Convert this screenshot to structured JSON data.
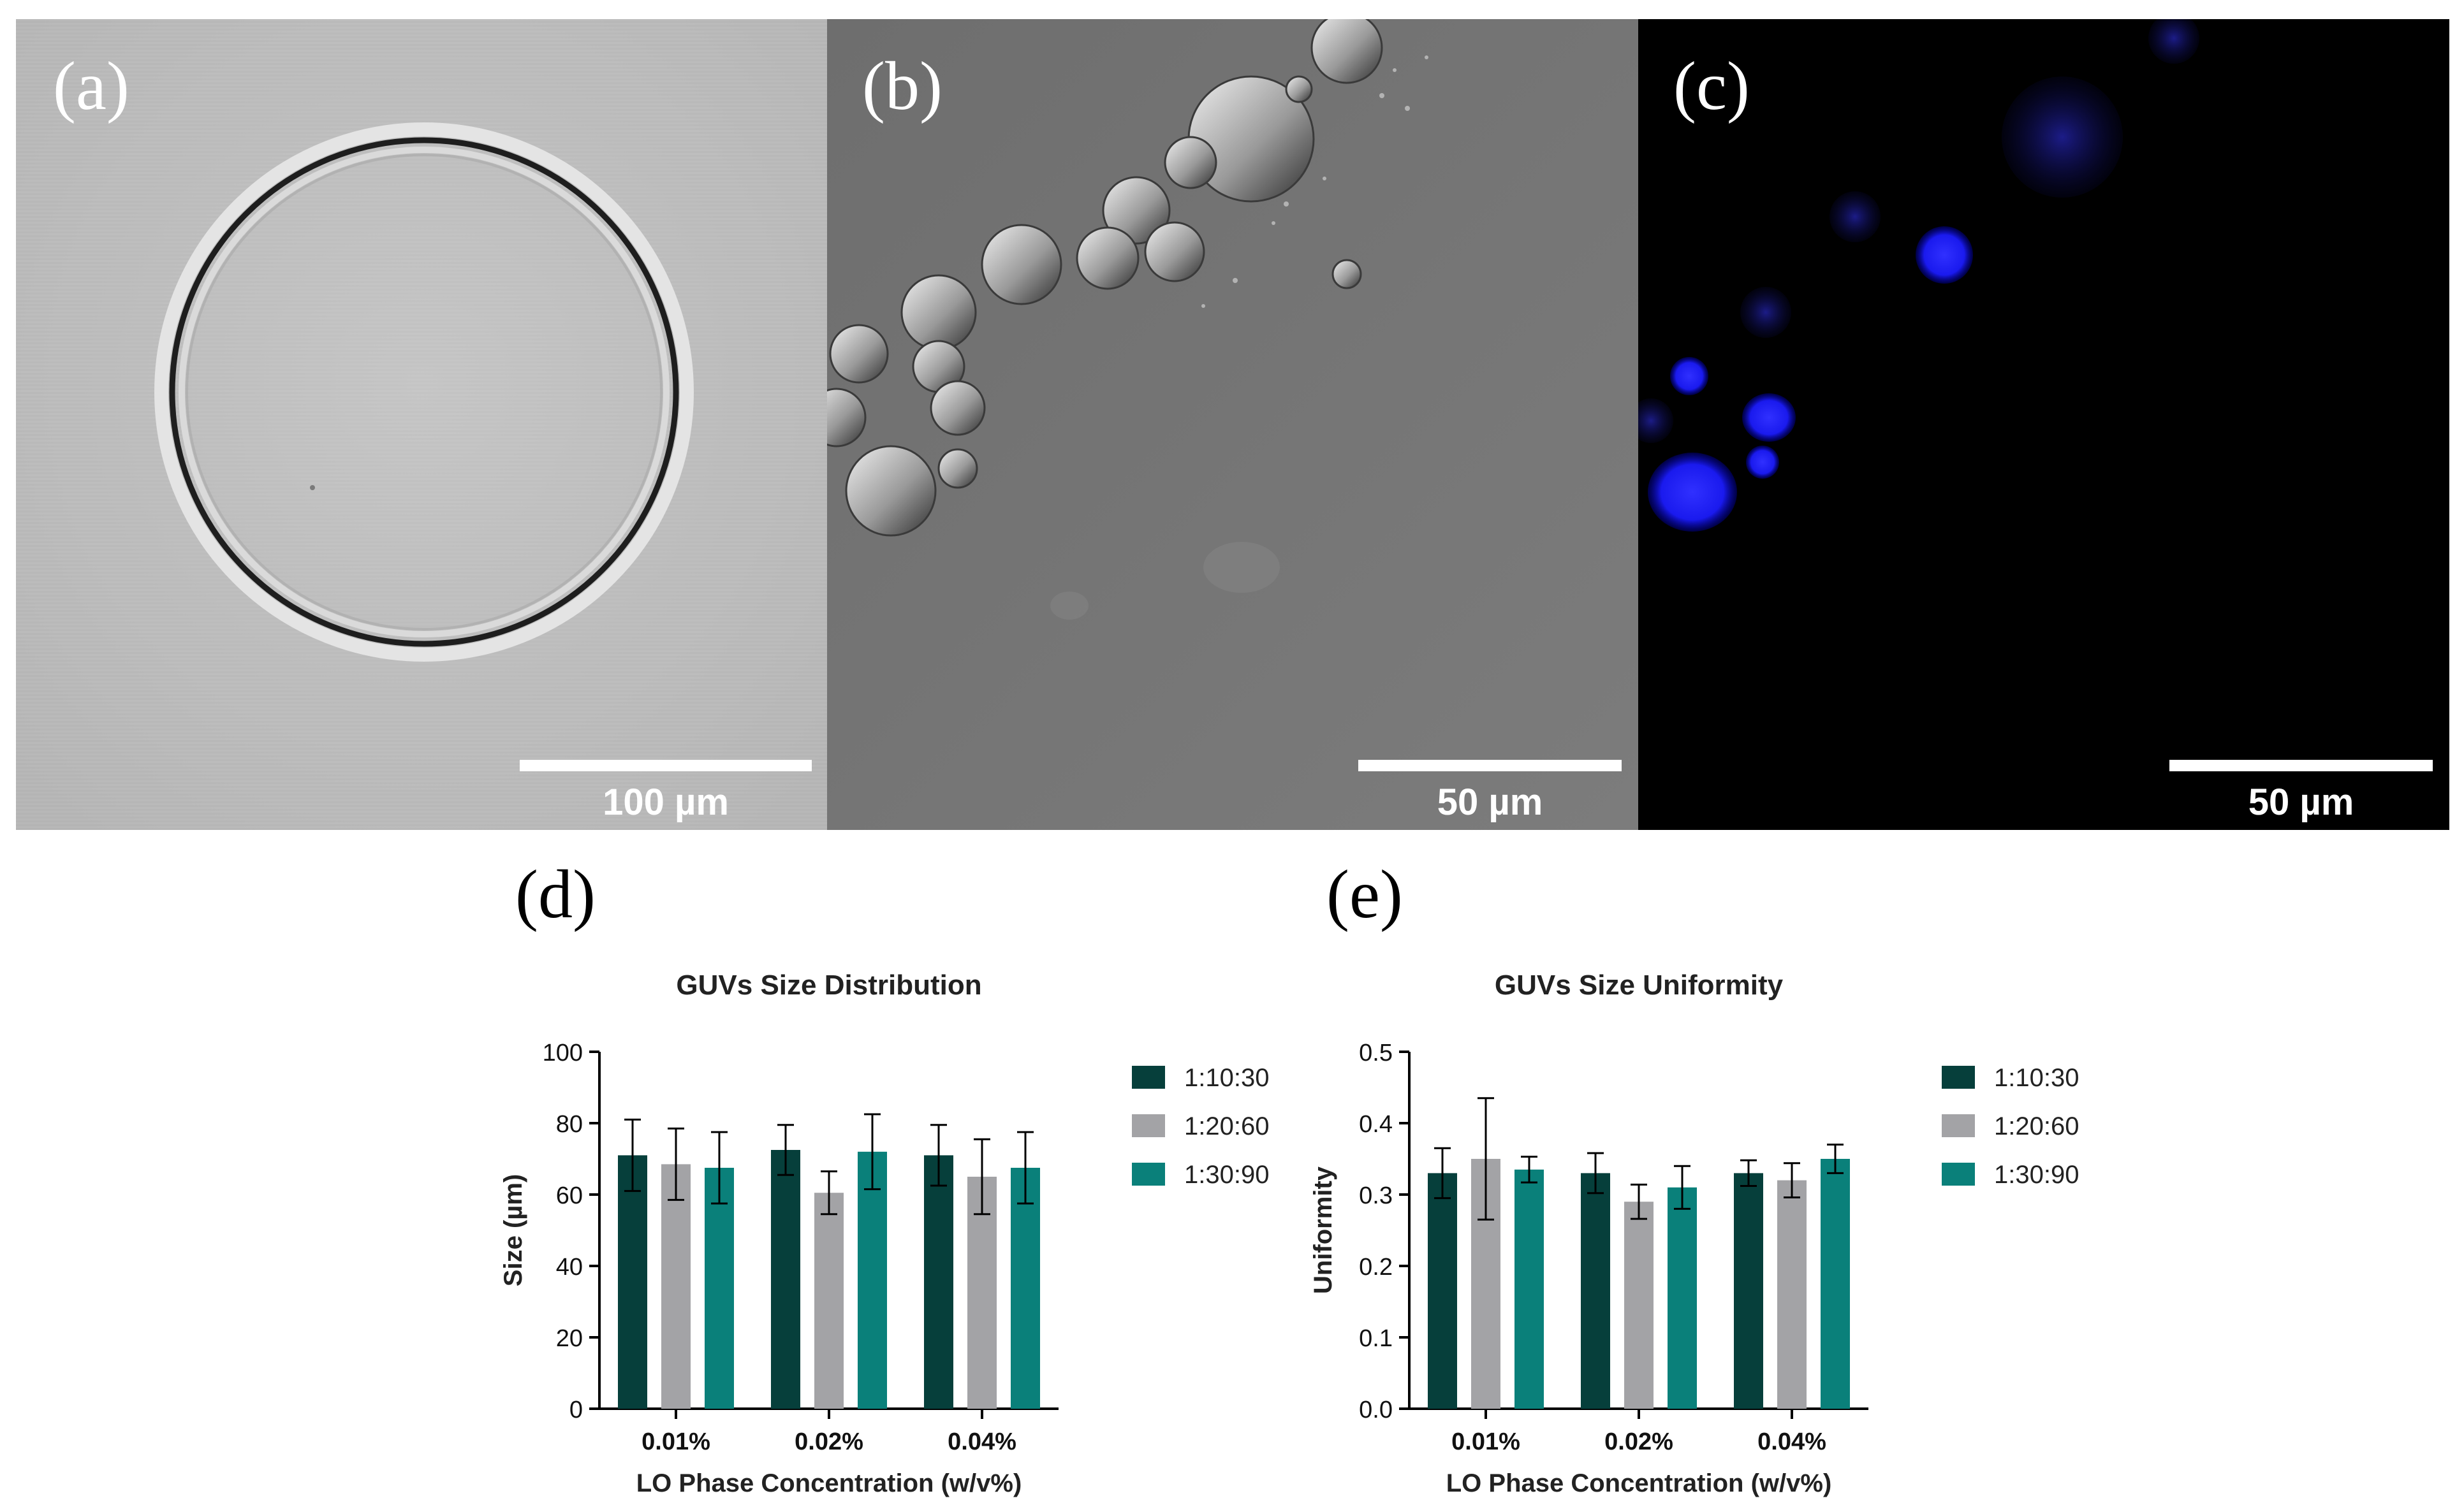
{
  "panels": {
    "a": {
      "letter": "(a)",
      "scale_label": "100 µm"
    },
    "b": {
      "letter": "(b)",
      "scale_label": "50 µm"
    },
    "c": {
      "letter": "(c)",
      "scale_label": "50 µm"
    }
  },
  "chart_letters": {
    "d": "(d)",
    "e": "(e)"
  },
  "colors": {
    "s1": "#063f3b",
    "s2": "#a3a3a6",
    "s3": "#0a807a",
    "fluor": "#1a1aff"
  },
  "chart_data": [
    {
      "type": "bar",
      "title": "GUVs Size Distribution",
      "xlabel": "LO Phase Concentration (w/v%)",
      "ylabel": "Size (µm)",
      "categories": [
        "0.01%",
        "0.02%",
        "0.04%"
      ],
      "ylim": [
        0,
        100
      ],
      "yticks": [
        "0",
        "20",
        "40",
        "60",
        "80",
        "100"
      ],
      "legend_position": "right",
      "series": [
        {
          "name": "1:10:30",
          "values": [
            71,
            72.5,
            71
          ],
          "errors": [
            10,
            7,
            8.5
          ]
        },
        {
          "name": "1:20:60",
          "values": [
            68.5,
            60.5,
            65
          ],
          "errors": [
            10,
            6,
            10.5
          ]
        },
        {
          "name": "1:30:90",
          "values": [
            67.5,
            72,
            67.5
          ],
          "errors": [
            10,
            10.5,
            10
          ]
        }
      ]
    },
    {
      "type": "bar",
      "title": "GUVs Size Uniformity",
      "xlabel": "LO Phase Concentration (w/v%)",
      "ylabel": "Uniformity",
      "categories": [
        "0.01%",
        "0.02%",
        "0.04%"
      ],
      "ylim": [
        0,
        0.5
      ],
      "yticks": [
        "0.0",
        "0.1",
        "0.2",
        "0.3",
        "0.4",
        "0.5"
      ],
      "legend_position": "right",
      "series": [
        {
          "name": "1:10:30",
          "values": [
            0.33,
            0.33,
            0.33
          ],
          "errors": [
            0.035,
            0.028,
            0.018
          ]
        },
        {
          "name": "1:20:60",
          "values": [
            0.35,
            0.29,
            0.32
          ],
          "errors": [
            0.085,
            0.024,
            0.024
          ]
        },
        {
          "name": "1:30:90",
          "values": [
            0.335,
            0.31,
            0.35
          ],
          "errors": [
            0.018,
            0.03,
            0.02
          ]
        }
      ]
    }
  ]
}
